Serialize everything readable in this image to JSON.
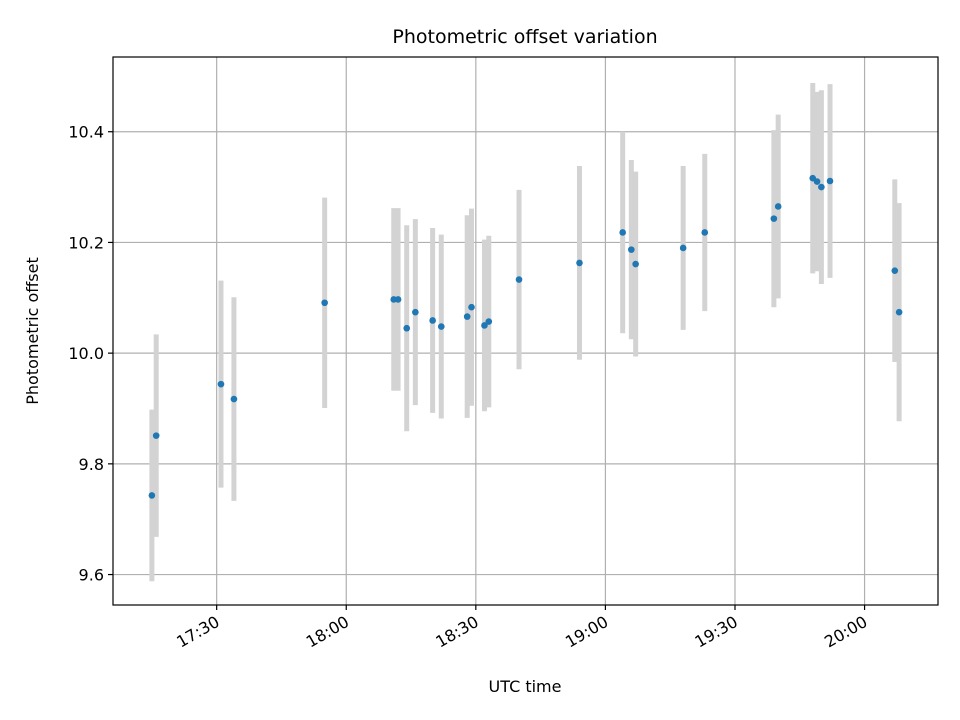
{
  "chart_data": {
    "type": "scatter",
    "title": "Photometric offset variation",
    "xlabel": "UTC time",
    "ylabel": "Photometric offset",
    "xlim": [
      "17:06",
      "20:17"
    ],
    "ylim": [
      9.545,
      10.535
    ],
    "grid": true,
    "x_ticks": [
      "17:30",
      "18:00",
      "18:30",
      "19:00",
      "19:30",
      "20:00"
    ],
    "y_ticks": [
      "9.6",
      "9.8",
      "10.0",
      "10.2",
      "10.4"
    ],
    "colors": {
      "points": "#1f77b4",
      "error_bars": "#d3d3d3",
      "grid": "#b0b0b0"
    },
    "series": [
      {
        "points": [
          {
            "x": "17:15",
            "y": 9.743,
            "yerr": 0.155
          },
          {
            "x": "17:16",
            "y": 9.851,
            "yerr": 0.183
          },
          {
            "x": "17:31",
            "y": 9.944,
            "yerr": 0.187
          },
          {
            "x": "17:34",
            "y": 9.917,
            "yerr": 0.184
          },
          {
            "x": "17:55",
            "y": 10.091,
            "yerr": 0.19
          },
          {
            "x": "18:11",
            "y": 10.097,
            "yerr": 0.165
          },
          {
            "x": "18:12",
            "y": 10.097,
            "yerr": 0.165
          },
          {
            "x": "18:14",
            "y": 10.045,
            "yerr": 0.186
          },
          {
            "x": "18:16",
            "y": 10.074,
            "yerr": 0.168
          },
          {
            "x": "18:20",
            "y": 10.059,
            "yerr": 0.167
          },
          {
            "x": "18:22",
            "y": 10.048,
            "yerr": 0.166
          },
          {
            "x": "18:28",
            "y": 10.066,
            "yerr": 0.183
          },
          {
            "x": "18:29",
            "y": 10.083,
            "yerr": 0.178
          },
          {
            "x": "18:32",
            "y": 10.05,
            "yerr": 0.155
          },
          {
            "x": "18:33",
            "y": 10.057,
            "yerr": 0.155
          },
          {
            "x": "18:40",
            "y": 10.133,
            "yerr": 0.162
          },
          {
            "x": "18:54",
            "y": 10.163,
            "yerr": 0.175
          },
          {
            "x": "19:04",
            "y": 10.218,
            "yerr": 0.182
          },
          {
            "x": "19:06",
            "y": 10.187,
            "yerr": 0.162
          },
          {
            "x": "19:07",
            "y": 10.161,
            "yerr": 0.167
          },
          {
            "x": "19:18",
            "y": 10.19,
            "yerr": 0.148
          },
          {
            "x": "19:23",
            "y": 10.218,
            "yerr": 0.142
          },
          {
            "x": "19:39",
            "y": 10.243,
            "yerr": 0.16
          },
          {
            "x": "19:40",
            "y": 10.265,
            "yerr": 0.166
          },
          {
            "x": "19:48",
            "y": 10.316,
            "yerr": 0.172
          },
          {
            "x": "19:49",
            "y": 10.31,
            "yerr": 0.162
          },
          {
            "x": "19:50",
            "y": 10.3,
            "yerr": 0.175
          },
          {
            "x": "19:52",
            "y": 10.311,
            "yerr": 0.175
          },
          {
            "x": "20:07",
            "y": 10.149,
            "yerr": 0.165
          },
          {
            "x": "20:08",
            "y": 10.074,
            "yerr": 0.197
          }
        ]
      }
    ]
  }
}
